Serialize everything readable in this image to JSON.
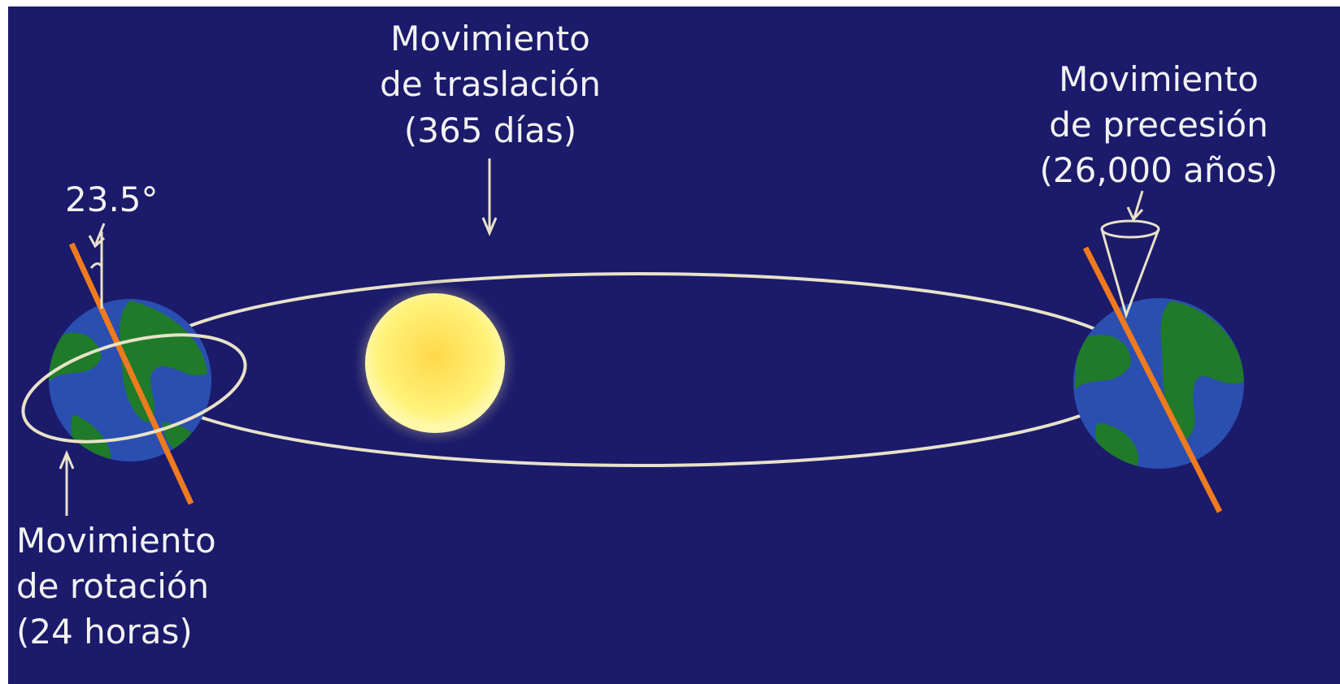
{
  "translation": {
    "lines": [
      "Movimiento",
      "de traslación",
      "(365 días)"
    ]
  },
  "precession": {
    "lines": [
      "Movimiento",
      "de precesión",
      "(26,000 años)"
    ]
  },
  "rotation": {
    "lines": [
      "Movimiento",
      "de rotación",
      "(24 horas)"
    ]
  },
  "tilt": {
    "label": "23.5°"
  }
}
